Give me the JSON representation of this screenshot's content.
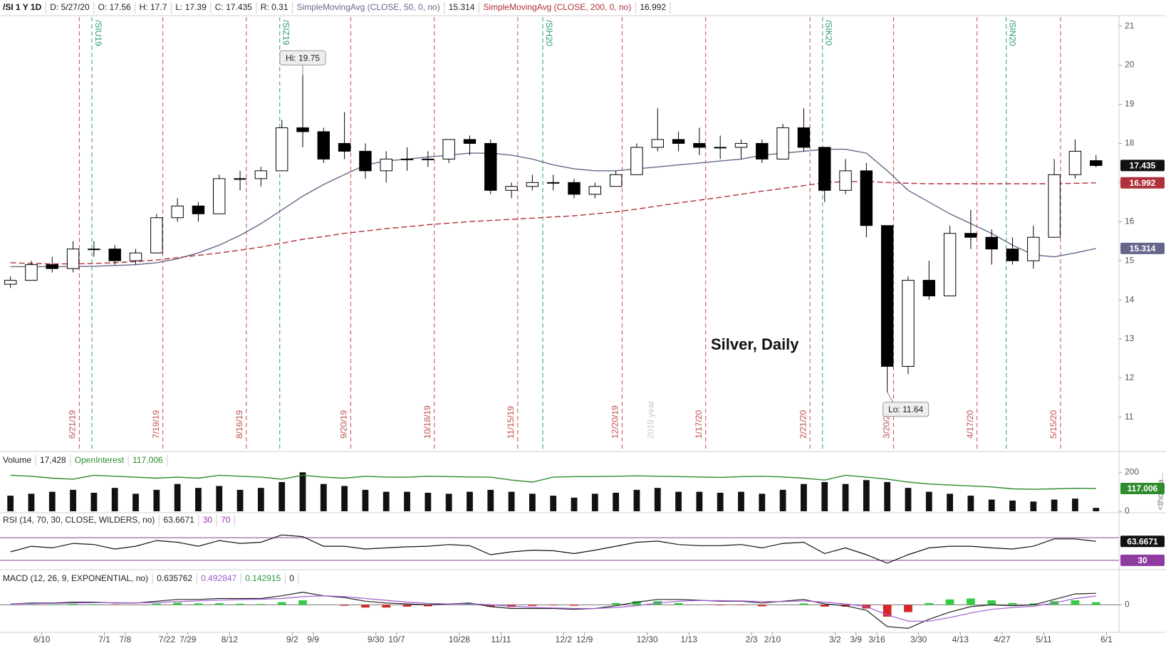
{
  "chart_data": [
    {
      "type": "candlestick",
      "title": "/SI 1 Y 1D",
      "header": [
        "D: 5/27/20",
        "O: 17.56",
        "H: 17.7",
        "L: 17.39",
        "C: 17.435",
        "R: 0.31"
      ],
      "up_color": "#ffffff",
      "down_color": "#000000",
      "candles": [
        [
          14.4,
          14.6,
          14.3,
          14.5
        ],
        [
          14.5,
          15.0,
          14.5,
          14.9
        ],
        [
          14.9,
          15.1,
          14.7,
          14.8
        ],
        [
          14.8,
          15.5,
          14.7,
          15.3
        ],
        [
          15.3,
          15.5,
          15.1,
          15.3
        ],
        [
          15.3,
          15.4,
          14.9,
          15.0
        ],
        [
          15.0,
          15.3,
          14.9,
          15.2
        ],
        [
          15.2,
          16.2,
          15.2,
          16.1
        ],
        [
          16.1,
          16.6,
          16.0,
          16.4
        ],
        [
          16.4,
          16.5,
          16.0,
          16.2
        ],
        [
          16.2,
          17.2,
          16.2,
          17.1
        ],
        [
          17.1,
          17.3,
          16.8,
          17.1
        ],
        [
          17.1,
          17.4,
          16.9,
          17.3
        ],
        [
          17.3,
          18.6,
          17.3,
          18.4
        ],
        [
          18.4,
          19.75,
          17.9,
          18.3
        ],
        [
          18.3,
          18.4,
          17.5,
          17.6
        ],
        [
          18.0,
          18.8,
          17.6,
          17.8
        ],
        [
          17.8,
          18.0,
          17.1,
          17.3
        ],
        [
          17.3,
          17.8,
          17.0,
          17.6
        ],
        [
          17.6,
          17.9,
          17.3,
          17.6
        ],
        [
          17.6,
          17.8,
          17.4,
          17.6
        ],
        [
          17.6,
          18.1,
          17.5,
          18.1
        ],
        [
          18.1,
          18.2,
          17.7,
          18.0
        ],
        [
          18.0,
          18.1,
          16.7,
          16.8
        ],
        [
          16.8,
          17.0,
          16.6,
          16.9
        ],
        [
          16.9,
          17.2,
          16.8,
          17.0
        ],
        [
          17.0,
          17.2,
          16.8,
          17.0
        ],
        [
          17.0,
          17.1,
          16.6,
          16.7
        ],
        [
          16.7,
          17.0,
          16.6,
          16.9
        ],
        [
          16.9,
          17.3,
          16.9,
          17.2
        ],
        [
          17.2,
          18.0,
          17.2,
          17.9
        ],
        [
          17.9,
          18.9,
          17.8,
          18.1
        ],
        [
          18.1,
          18.3,
          17.8,
          18.0
        ],
        [
          18.0,
          18.4,
          17.7,
          17.9
        ],
        [
          17.9,
          18.2,
          17.6,
          17.9
        ],
        [
          17.9,
          18.1,
          17.6,
          18.0
        ],
        [
          18.0,
          18.1,
          17.5,
          17.6
        ],
        [
          17.6,
          18.5,
          17.6,
          18.4
        ],
        [
          18.4,
          18.9,
          17.8,
          17.9
        ],
        [
          17.9,
          17.9,
          16.5,
          16.8
        ],
        [
          16.8,
          17.6,
          16.7,
          17.3
        ],
        [
          17.3,
          17.5,
          15.6,
          15.9
        ],
        [
          15.9,
          15.9,
          11.64,
          12.3
        ],
        [
          12.3,
          14.6,
          12.1,
          14.5
        ],
        [
          14.5,
          15.0,
          14.0,
          14.1
        ],
        [
          14.1,
          15.9,
          14.1,
          15.7
        ],
        [
          15.7,
          16.3,
          15.3,
          15.6
        ],
        [
          15.6,
          15.8,
          14.9,
          15.3
        ],
        [
          15.3,
          15.6,
          14.9,
          15.0
        ],
        [
          15.0,
          15.9,
          14.8,
          15.6
        ],
        [
          15.6,
          17.6,
          15.6,
          17.2
        ],
        [
          17.2,
          18.1,
          17.1,
          17.8
        ],
        [
          17.56,
          17.7,
          17.39,
          17.435
        ]
      ],
      "series": [
        {
          "name": "SimpleMovingAvg (CLOSE, 50, 0, no)",
          "color": "#66668c",
          "dashed": false,
          "values": [
            14.85,
            14.85,
            14.85,
            14.85,
            14.86,
            14.88,
            14.9,
            14.95,
            15.05,
            15.2,
            15.4,
            15.65,
            15.95,
            16.3,
            16.65,
            16.95,
            17.2,
            17.45,
            17.55,
            17.6,
            17.65,
            17.7,
            17.75,
            17.75,
            17.7,
            17.6,
            17.45,
            17.35,
            17.3,
            17.3,
            17.35,
            17.4,
            17.45,
            17.5,
            17.55,
            17.6,
            17.7,
            17.75,
            17.8,
            17.85,
            17.85,
            17.75,
            17.3,
            16.8,
            16.5,
            16.2,
            15.95,
            15.7,
            15.4,
            15.15,
            15.1,
            15.2,
            15.314
          ]
        },
        {
          "name": "SimpleMovingAvg (CLOSE, 200, 0, no)",
          "color": "#b0303a",
          "dashed": true,
          "values": [
            14.95,
            14.93,
            14.92,
            14.92,
            14.93,
            14.95,
            14.98,
            15.02,
            15.08,
            15.14,
            15.2,
            15.27,
            15.35,
            15.45,
            15.55,
            15.62,
            15.7,
            15.76,
            15.82,
            15.87,
            15.92,
            15.96,
            16.0,
            16.03,
            16.06,
            16.09,
            16.12,
            16.15,
            16.2,
            16.25,
            16.32,
            16.4,
            16.48,
            16.55,
            16.62,
            16.7,
            16.78,
            16.85,
            16.92,
            17.0,
            17.02,
            17.03,
            17.0,
            16.98,
            16.97,
            16.97,
            16.97,
            16.97,
            16.97,
            16.97,
            16.97,
            16.98,
            16.992
          ]
        }
      ],
      "last_color": "#111111",
      "xlim": [
        0,
        53.6
      ],
      "xticks": [
        {
          "value": 2,
          "label": "6/10"
        },
        {
          "value": 5,
          "label": "7/1"
        },
        {
          "value": 6,
          "label": "7/8"
        },
        {
          "value": 8,
          "label": "7/22"
        },
        {
          "value": 9,
          "label": "7/29"
        },
        {
          "value": 11,
          "label": "8/12"
        },
        {
          "value": 14,
          "label": "9/2"
        },
        {
          "value": 15,
          "label": "9/9"
        },
        {
          "value": 18,
          "label": "9/30"
        },
        {
          "value": 19,
          "label": "10/7"
        },
        {
          "value": 22,
          "label": "10/28"
        },
        {
          "value": 24,
          "label": "11/11"
        },
        {
          "value": 27,
          "label": "12/2"
        },
        {
          "value": 28,
          "label": "12/9"
        },
        {
          "value": 31,
          "label": "12/30"
        },
        {
          "value": 33,
          "label": "1/13"
        },
        {
          "value": 36,
          "label": "2/3"
        },
        {
          "value": 37,
          "label": "2/10"
        },
        {
          "value": 40,
          "label": "3/2"
        },
        {
          "value": 41,
          "label": "3/9"
        },
        {
          "value": 42,
          "label": "3/16"
        },
        {
          "value": 44,
          "label": "3/30"
        },
        {
          "value": 46,
          "label": "4/13"
        },
        {
          "value": 48,
          "label": "4/27"
        },
        {
          "value": 50,
          "label": "5/11"
        },
        {
          "value": 53,
          "label": "6/1"
        }
      ],
      "ylim": [
        10.16,
        21.23
      ],
      "yticks": [
        11,
        12,
        13,
        14,
        15,
        16,
        17,
        18,
        19,
        20,
        21
      ],
      "expirations": {
        "color": "#c0504d",
        "lines": [
          {
            "value": 3.8,
            "label": "6/21/19"
          },
          {
            "value": 7.8,
            "label": "7/19/19"
          },
          {
            "value": 11.8,
            "label": "8/16/19"
          },
          {
            "value": 16.8,
            "label": "9/20/19"
          },
          {
            "value": 20.8,
            "label": "10/18/19"
          },
          {
            "value": 24.8,
            "label": "11/15/19"
          },
          {
            "value": 29.8,
            "label": "12/20/19"
          },
          {
            "value": 33.8,
            "label": "1/17/20"
          },
          {
            "value": 38.8,
            "label": "2/21/20"
          },
          {
            "value": 42.8,
            "label": "3/20/20"
          },
          {
            "value": 46.8,
            "label": "4/17/20"
          },
          {
            "value": 50.8,
            "label": "5/15/20"
          }
        ]
      },
      "contracts": {
        "color": "#2f9a6c",
        "lines": [
          {
            "value": 4.4,
            "label": "/SIU19"
          },
          {
            "value": 13.4,
            "label": "/SIZ19"
          },
          {
            "value": 26.0,
            "label": "/SIH20"
          },
          {
            "value": 39.4,
            "label": "/SIK20"
          },
          {
            "value": 48.2,
            "label": "/SIN20"
          }
        ]
      },
      "year_marker": {
        "value": 31.2,
        "label": "2019 year"
      },
      "annotations": {
        "high": "Hi: 19.75",
        "low": "Lo: 11.64",
        "text": "Silver, Daily"
      }
    },
    {
      "type": "bar",
      "title": "Volume",
      "header": [
        "17,428"
      ],
      "color": "#111111",
      "values": [
        80,
        90,
        100,
        110,
        95,
        120,
        90,
        110,
        140,
        120,
        130,
        110,
        120,
        150,
        200,
        140,
        130,
        110,
        100,
        100,
        95,
        90,
        100,
        110,
        100,
        90,
        80,
        70,
        90,
        95,
        110,
        120,
        100,
        100,
        95,
        100,
        90,
        110,
        140,
        150,
        140,
        160,
        150,
        120,
        100,
        90,
        80,
        60,
        55,
        50,
        60,
        65,
        17.428
      ],
      "series": [
        {
          "name": "OpenInterest",
          "color": "#2e8b2e",
          "latest": "117,006",
          "values": [
            185,
            180,
            170,
            165,
            185,
            180,
            175,
            170,
            175,
            170,
            185,
            180,
            175,
            165,
            185,
            175,
            170,
            180,
            175,
            175,
            180,
            178,
            176,
            175,
            160,
            150,
            175,
            178,
            178,
            180,
            182,
            180,
            178,
            176,
            174,
            178,
            180,
            176,
            170,
            160,
            185,
            175,
            165,
            150,
            140,
            135,
            130,
            125,
            115,
            113,
            115,
            118,
            117.006
          ]
        }
      ],
      "ylim": [
        0,
        212
      ],
      "yticks": [
        0,
        200
      ],
      "ylabel": "<thousa..."
    },
    {
      "type": "line",
      "title": "RSI (14, 70, 30, CLOSE, WILDERS, no)",
      "color": "#111111",
      "values": [
        45,
        55,
        52,
        60,
        58,
        50,
        55,
        65,
        62,
        55,
        65,
        60,
        62,
        75,
        72,
        55,
        55,
        50,
        52,
        54,
        55,
        58,
        56,
        40,
        45,
        48,
        47,
        42,
        48,
        55,
        62,
        64,
        58,
        56,
        56,
        58,
        52,
        60,
        62,
        42,
        52,
        40,
        25,
        40,
        52,
        55,
        55,
        52,
        50,
        55,
        68,
        68,
        63.6671
      ],
      "levels": [
        30,
        70
      ],
      "level_color": "#8e3a9e",
      "ylim": [
        16,
        86.6
      ]
    },
    {
      "type": "macd",
      "title": "MACD (12, 26, 9, EXPONENTIAL, no)",
      "value": [
        0.05,
        0.1,
        0.1,
        0.15,
        0.15,
        0.1,
        0.1,
        0.2,
        0.3,
        0.3,
        0.35,
        0.35,
        0.35,
        0.5,
        0.7,
        0.5,
        0.4,
        0.2,
        0.1,
        0.05,
        0,
        0.05,
        0.1,
        -0.1,
        -0.2,
        -0.2,
        -0.2,
        -0.25,
        -0.2,
        -0.05,
        0.15,
        0.3,
        0.3,
        0.25,
        0.2,
        0.2,
        0.1,
        0.2,
        0.3,
        0.05,
        -0.05,
        -0.3,
        -1.2,
        -1.3,
        -0.8,
        -0.4,
        -0.1,
        0.0,
        -0.05,
        0.0,
        0.3,
        0.6,
        0.635762
      ],
      "avg": [
        0.05,
        0.07,
        0.08,
        0.1,
        0.12,
        0.12,
        0.11,
        0.13,
        0.18,
        0.22,
        0.26,
        0.29,
        0.31,
        0.35,
        0.45,
        0.5,
        0.45,
        0.35,
        0.25,
        0.15,
        0.08,
        0.05,
        0.06,
        0.0,
        -0.08,
        -0.14,
        -0.17,
        -0.2,
        -0.2,
        -0.15,
        -0.05,
        0.1,
        0.2,
        0.24,
        0.23,
        0.22,
        0.18,
        0.18,
        0.22,
        0.15,
        0.05,
        -0.1,
        -0.55,
        -0.9,
        -0.9,
        -0.7,
        -0.45,
        -0.25,
        -0.15,
        -0.08,
        0.1,
        0.35,
        0.492847
      ],
      "diff": [
        0,
        0.03,
        0.02,
        0.05,
        0.03,
        -0.02,
        -0.01,
        0.07,
        0.12,
        0.08,
        0.09,
        0.06,
        0.04,
        0.15,
        0.25,
        0,
        -0.05,
        -0.15,
        -0.15,
        -0.1,
        -0.08,
        0,
        0.04,
        -0.1,
        -0.12,
        -0.06,
        -0.03,
        -0.05,
        0,
        0.1,
        0.2,
        0.2,
        0.1,
        0.01,
        -0.03,
        -0.02,
        -0.08,
        0.02,
        0.08,
        -0.1,
        -0.1,
        -0.2,
        -0.65,
        -0.4,
        0.1,
        0.3,
        0.35,
        0.25,
        0.1,
        0.08,
        0.2,
        0.25,
        0.142915
      ],
      "zero": 0,
      "colors": {
        "value": "#222222",
        "avg": "#a05ad0",
        "diff_up": "#33cc44",
        "diff_down": "#d62728"
      },
      "ylim": [
        -1.44,
        0.92
      ],
      "yticks": [
        0
      ]
    }
  ]
}
